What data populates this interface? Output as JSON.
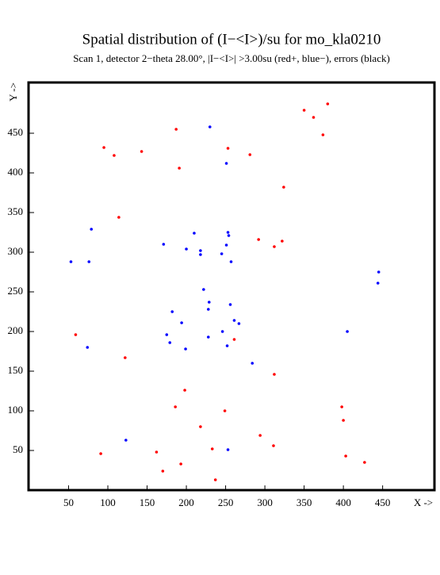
{
  "chart_data": {
    "type": "scatter",
    "title": "Spatial distribution of (I−<I>)/su for mo_kla0210",
    "subtitle": "Scan  1, detector 2−theta  28.00°, |I−<I>| >3.00su (red+, blue−), errors (black)",
    "x_label": "X ->",
    "y_label": "Y ->",
    "xlim": [
      0,
      516
    ],
    "ylim": [
      0,
      514
    ],
    "xticks": [
      50,
      100,
      150,
      200,
      250,
      300,
      350,
      400,
      450
    ],
    "yticks": [
      50,
      100,
      150,
      200,
      250,
      300,
      350,
      400,
      450
    ],
    "series": [
      {
        "color": "#ff0000",
        "x": [
          380,
          350,
          362,
          374,
          95,
          108,
          187,
          143,
          253,
          281,
          191,
          324,
          114,
          292,
          322,
          312,
          59,
          122,
          261,
          312,
          198,
          186,
          249,
          398,
          400,
          218,
          294,
          311,
          91,
          162,
          233,
          403,
          427,
          193,
          170,
          237
        ],
        "values": [
          487,
          479,
          470,
          448,
          432,
          422,
          455,
          427,
          431,
          423,
          406,
          382,
          344,
          316,
          314,
          307,
          196,
          167,
          190,
          146,
          126,
          105,
          100,
          105,
          88,
          80,
          69,
          56,
          46,
          48,
          52,
          43,
          35,
          33,
          24,
          13
        ]
      },
      {
        "color": "#0000ff",
        "x": [
          230,
          251,
          79,
          210,
          253,
          254,
          53,
          76,
          171,
          200,
          251,
          218,
          218,
          245,
          257,
          445,
          444,
          222,
          229,
          256,
          228,
          182,
          194,
          261,
          267,
          246,
          405,
          175,
          228,
          179,
          252,
          74,
          199,
          284,
          123,
          253
        ],
        "values": [
          458,
          412,
          329,
          324,
          325,
          321,
          288,
          288,
          310,
          304,
          309,
          302,
          297,
          298,
          288,
          275,
          261,
          253,
          237,
          234,
          228,
          225,
          211,
          214,
          210,
          200,
          200,
          196,
          193,
          186,
          182,
          180,
          178,
          160,
          63,
          51
        ]
      }
    ]
  }
}
